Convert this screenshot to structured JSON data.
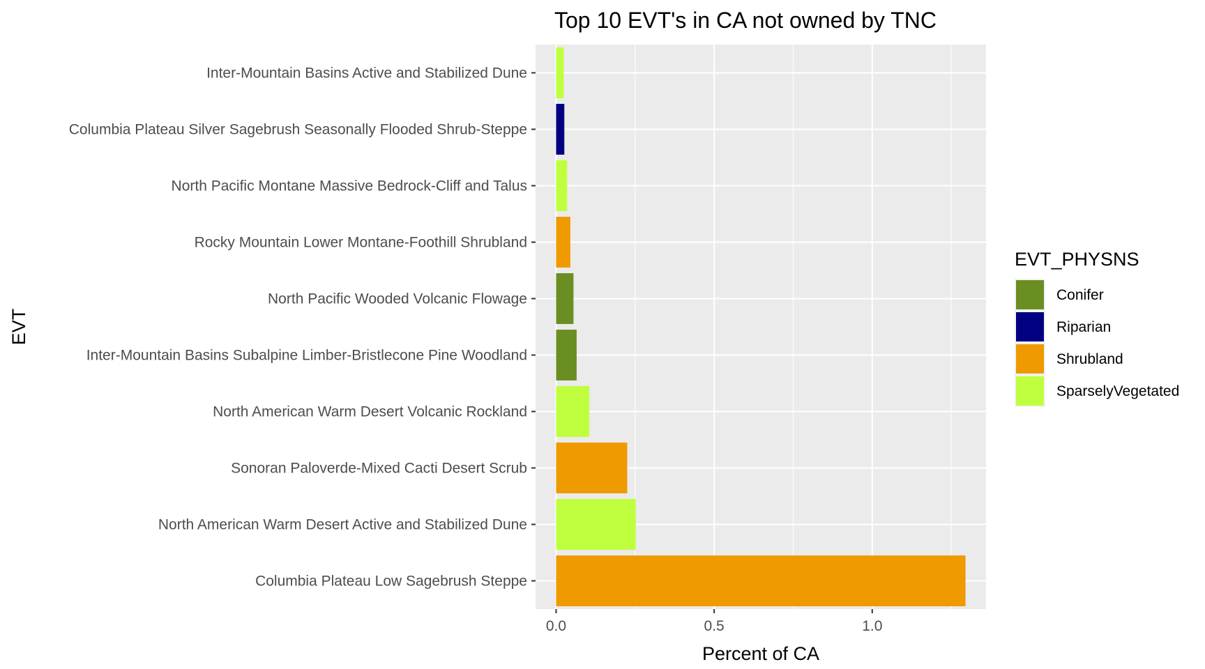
{
  "chart_data": {
    "type": "bar",
    "orientation": "horizontal",
    "title": "Top 10 EVT's in CA not owned by TNC",
    "xlabel": "Percent of CA",
    "ylabel": "EVT",
    "xlim": [
      -0.065,
      1.36
    ],
    "x_ticks": [
      "0.0",
      "0.5",
      "1.0"
    ],
    "x_tick_values": [
      0,
      0.5,
      1.0
    ],
    "grid": true,
    "legend_position": "right",
    "legend_title": "EVT_PHYSNS",
    "legend": [
      {
        "label": "Conifer",
        "color": "#6B8E23"
      },
      {
        "label": "Riparian",
        "color": "#000080"
      },
      {
        "label": "Shrubland",
        "color": "#EE9A00"
      },
      {
        "label": "SparselyVegetated",
        "color": "#C0FF3E"
      }
    ],
    "categories": [
      "Inter-Mountain Basins Active and Stabilized Dune",
      "Columbia Plateau Silver Sagebrush Seasonally Flooded Shrub-Steppe",
      "North Pacific Montane Massive Bedrock-Cliff and Talus",
      "Rocky Mountain Lower Montane-Foothill Shrubland",
      "North Pacific Wooded Volcanic Flowage",
      "Inter-Mountain Basins Subalpine Limber-Bristlecone Pine Woodland",
      "North American Warm Desert Volcanic Rockland",
      "Sonoran Paloverde-Mixed Cacti Desert Scrub",
      "North American Warm Desert Active and Stabilized Dune",
      "Columbia Plateau Low Sagebrush Steppe"
    ],
    "values": [
      0.024,
      0.026,
      0.035,
      0.045,
      0.055,
      0.065,
      0.105,
      0.225,
      0.252,
      1.295
    ],
    "groups": [
      "SparselyVegetated",
      "Riparian",
      "SparselyVegetated",
      "Shrubland",
      "Conifer",
      "Conifer",
      "SparselyVegetated",
      "Shrubland",
      "SparselyVegetated",
      "Shrubland"
    ],
    "colors": {
      "panel_background": "#EBEBEB",
      "grid": "#FFFFFF"
    }
  }
}
